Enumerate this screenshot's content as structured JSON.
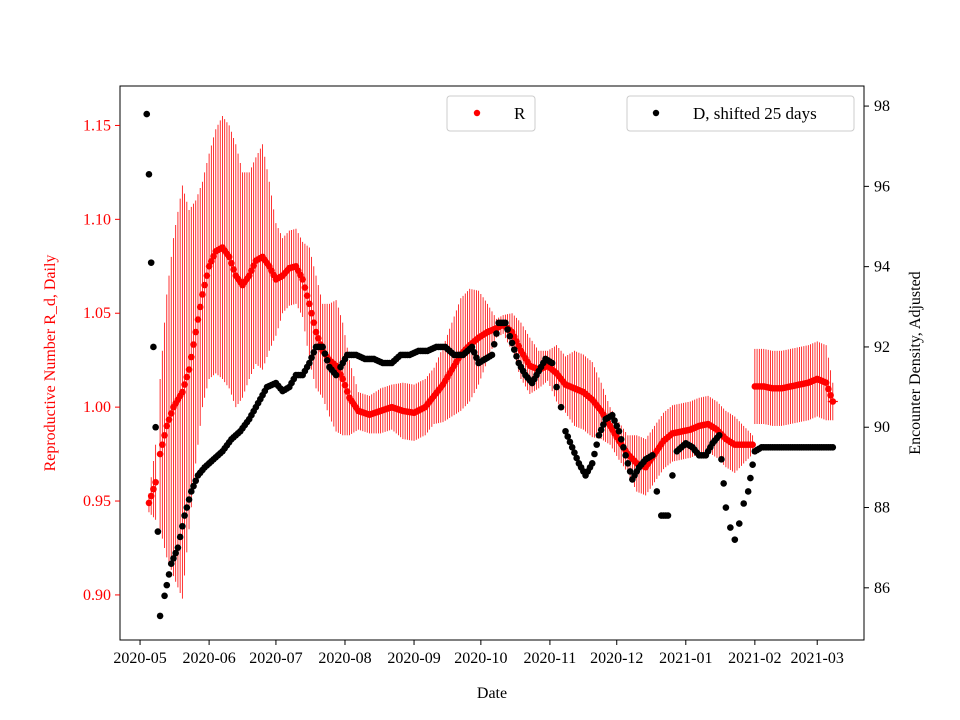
{
  "chart_data": {
    "type": "scatter",
    "xlabel": "Date",
    "ylabel_left": "Reproductive Number R_d, Daily",
    "ylabel_right": "Encounter Density, Adjusted",
    "x_ticks": [
      "2020-05",
      "2020-06",
      "2020-07",
      "2020-08",
      "2020-09",
      "2020-10",
      "2020-11",
      "2020-12",
      "2021-01",
      "2021-02",
      "2021-03"
    ],
    "x_range": [
      "2020-04-22",
      "2021-03-22"
    ],
    "ylim_left": [
      0.876,
      1.171
    ],
    "ylim_right": [
      84.7,
      98.5
    ],
    "yticks_left": [
      "0.90",
      "0.95",
      "1.00",
      "1.05",
      "1.10",
      "1.15"
    ],
    "yticks_right": [
      "86",
      "88",
      "90",
      "92",
      "94",
      "96",
      "98"
    ],
    "colors": {
      "R": "#ff0000",
      "D": "#000000",
      "left_axis": "#ff0000",
      "right_axis": "#000000"
    },
    "legend": [
      {
        "series": "R",
        "label": "R",
        "placement": "top-center"
      },
      {
        "series": "D",
        "label": "D, shifted 25 days",
        "placement": "top-right"
      }
    ],
    "series": [
      {
        "name": "R",
        "axis": "left",
        "color": "#ff0000",
        "marker": "dot-with-errorbar",
        "points": [
          [
            "2020-05-05",
            0.949,
            0.005
          ],
          [
            "2020-05-08",
            0.96,
            0.02
          ],
          [
            "2020-05-10",
            0.975,
            0.04
          ],
          [
            "2020-05-13",
            0.99,
            0.07
          ],
          [
            "2020-05-16",
            1.0,
            0.09
          ],
          [
            "2020-05-20",
            1.008,
            0.11
          ],
          [
            "2020-05-23",
            1.02,
            0.085
          ],
          [
            "2020-05-26",
            1.04,
            0.07
          ],
          [
            "2020-05-29",
            1.06,
            0.06
          ],
          [
            "2020-06-01",
            1.075,
            0.06
          ],
          [
            "2020-06-04",
            1.083,
            0.065
          ],
          [
            "2020-06-07",
            1.085,
            0.07
          ],
          [
            "2020-06-10",
            1.08,
            0.07
          ],
          [
            "2020-06-13",
            1.07,
            0.07
          ],
          [
            "2020-06-16",
            1.065,
            0.06
          ],
          [
            "2020-06-19",
            1.07,
            0.055
          ],
          [
            "2020-06-22",
            1.078,
            0.055
          ],
          [
            "2020-06-25",
            1.08,
            0.06
          ],
          [
            "2020-06-28",
            1.075,
            0.045
          ],
          [
            "2020-07-01",
            1.068,
            0.03
          ],
          [
            "2020-07-04",
            1.07,
            0.02
          ],
          [
            "2020-07-07",
            1.074,
            0.02
          ],
          [
            "2020-07-10",
            1.075,
            0.02
          ],
          [
            "2020-07-13",
            1.068,
            0.02
          ],
          [
            "2020-07-16",
            1.055,
            0.03
          ],
          [
            "2020-07-19",
            1.04,
            0.03
          ],
          [
            "2020-07-22",
            1.03,
            0.025
          ],
          [
            "2020-07-25",
            1.025,
            0.03
          ],
          [
            "2020-07-28",
            1.022,
            0.035
          ],
          [
            "2020-07-31",
            1.015,
            0.03
          ],
          [
            "2020-08-03",
            1.005,
            0.02
          ],
          [
            "2020-08-07",
            0.998,
            0.01
          ],
          [
            "2020-08-12",
            0.996,
            0.01
          ],
          [
            "2020-08-17",
            0.998,
            0.012
          ],
          [
            "2020-08-22",
            1.0,
            0.012
          ],
          [
            "2020-08-27",
            0.998,
            0.015
          ],
          [
            "2020-09-01",
            0.997,
            0.015
          ],
          [
            "2020-09-06",
            1.0,
            0.015
          ],
          [
            "2020-09-10",
            1.006,
            0.015
          ],
          [
            "2020-09-14",
            1.012,
            0.02
          ],
          [
            "2020-09-18",
            1.02,
            0.025
          ],
          [
            "2020-09-22",
            1.028,
            0.03
          ],
          [
            "2020-09-26",
            1.033,
            0.03
          ],
          [
            "2020-09-30",
            1.037,
            0.025
          ],
          [
            "2020-10-04",
            1.04,
            0.015
          ],
          [
            "2020-10-08",
            1.042,
            0.005
          ],
          [
            "2020-10-11",
            1.044,
            0.005
          ],
          [
            "2020-10-15",
            1.04,
            0.01
          ],
          [
            "2020-10-19",
            1.03,
            0.015
          ],
          [
            "2020-10-23",
            1.022,
            0.015
          ],
          [
            "2020-10-27",
            1.02,
            0.01
          ],
          [
            "2020-10-31",
            1.022,
            0.008
          ],
          [
            "2020-11-04",
            1.018,
            0.015
          ],
          [
            "2020-11-08",
            1.012,
            0.015
          ],
          [
            "2020-11-12",
            1.01,
            0.02
          ],
          [
            "2020-11-16",
            1.008,
            0.02
          ],
          [
            "2020-11-20",
            1.004,
            0.02
          ],
          [
            "2020-11-24",
            0.998,
            0.015
          ],
          [
            "2020-11-28",
            0.99,
            0.01
          ],
          [
            "2020-12-02",
            0.982,
            0.01
          ],
          [
            "2020-12-06",
            0.975,
            0.01
          ],
          [
            "2020-12-10",
            0.97,
            0.015
          ],
          [
            "2020-12-14",
            0.968,
            0.015
          ],
          [
            "2020-12-18",
            0.975,
            0.015
          ],
          [
            "2020-12-22",
            0.982,
            0.015
          ],
          [
            "2020-12-26",
            0.986,
            0.015
          ],
          [
            "2020-12-30",
            0.987,
            0.015
          ],
          [
            "2021-01-03",
            0.988,
            0.015
          ],
          [
            "2021-01-07",
            0.99,
            0.015
          ],
          [
            "2021-01-11",
            0.991,
            0.015
          ],
          [
            "2021-01-15",
            0.988,
            0.015
          ],
          [
            "2021-01-19",
            0.983,
            0.015
          ],
          [
            "2021-01-23",
            0.98,
            0.015
          ],
          [
            "2021-01-27",
            0.98,
            0.01
          ],
          [
            "2021-01-31",
            0.98,
            0.005
          ],
          [
            "2021-02-01",
            1.011,
            0.02
          ],
          [
            "2021-02-05",
            1.011,
            0.02
          ],
          [
            "2021-02-09",
            1.01,
            0.02
          ],
          [
            "2021-02-13",
            1.01,
            0.02
          ],
          [
            "2021-02-17",
            1.011,
            0.02
          ],
          [
            "2021-02-21",
            1.012,
            0.02
          ],
          [
            "2021-02-25",
            1.013,
            0.02
          ],
          [
            "2021-03-01",
            1.015,
            0.02
          ],
          [
            "2021-03-05",
            1.013,
            0.02
          ],
          [
            "2021-03-08",
            1.003,
            0.01
          ]
        ]
      },
      {
        "name": "D, shifted 25 days",
        "axis": "right",
        "color": "#000000",
        "marker": "dot",
        "points": [
          [
            "2020-05-04",
            97.8
          ],
          [
            "2020-05-05",
            96.3
          ],
          [
            "2020-05-06",
            94.1
          ],
          [
            "2020-05-07",
            92.0
          ],
          [
            "2020-05-08",
            90.0
          ],
          [
            "2020-05-09",
            87.4
          ],
          [
            "2020-05-10",
            85.3
          ],
          [
            "2020-05-12",
            85.8
          ],
          [
            "2020-05-15",
            86.6
          ],
          [
            "2020-05-18",
            87.0
          ],
          [
            "2020-05-21",
            87.8
          ],
          [
            "2020-05-24",
            88.4
          ],
          [
            "2020-05-27",
            88.8
          ],
          [
            "2020-05-30",
            89.0
          ],
          [
            "2020-06-03",
            89.2
          ],
          [
            "2020-06-07",
            89.4
          ],
          [
            "2020-06-11",
            89.7
          ],
          [
            "2020-06-15",
            89.9
          ],
          [
            "2020-06-19",
            90.2
          ],
          [
            "2020-06-23",
            90.6
          ],
          [
            "2020-06-27",
            91.0
          ],
          [
            "2020-07-01",
            91.1
          ],
          [
            "2020-07-04",
            90.9
          ],
          [
            "2020-07-07",
            91.0
          ],
          [
            "2020-07-10",
            91.3
          ],
          [
            "2020-07-13",
            91.3
          ],
          [
            "2020-07-16",
            91.6
          ],
          [
            "2020-07-19",
            92.0
          ],
          [
            "2020-07-22",
            92.0
          ],
          [
            "2020-07-25",
            91.5
          ],
          [
            "2020-07-28",
            91.3
          ],
          [
            "2020-07-30",
            91.5
          ],
          [
            "2020-08-02",
            91.8
          ],
          [
            "2020-08-06",
            91.8
          ],
          [
            "2020-08-10",
            91.7
          ],
          [
            "2020-08-14",
            91.7
          ],
          [
            "2020-08-18",
            91.6
          ],
          [
            "2020-08-22",
            91.6
          ],
          [
            "2020-08-26",
            91.8
          ],
          [
            "2020-08-30",
            91.8
          ],
          [
            "2020-09-03",
            91.9
          ],
          [
            "2020-09-07",
            91.9
          ],
          [
            "2020-09-11",
            92.0
          ],
          [
            "2020-09-15",
            92.0
          ],
          [
            "2020-09-19",
            91.8
          ],
          [
            "2020-09-23",
            91.8
          ],
          [
            "2020-09-27",
            92.0
          ],
          [
            "2020-09-30",
            91.6
          ],
          [
            "2020-10-03",
            91.7
          ],
          [
            "2020-10-06",
            91.8
          ],
          [
            "2020-10-09",
            92.6
          ],
          [
            "2020-10-12",
            92.6
          ],
          [
            "2020-10-15",
            92.1
          ],
          [
            "2020-10-18",
            91.6
          ],
          [
            "2020-10-21",
            91.3
          ],
          [
            "2020-10-24",
            91.1
          ],
          [
            "2020-10-27",
            91.4
          ],
          [
            "2020-10-30",
            91.7
          ],
          [
            "2020-11-02",
            91.6
          ],
          [
            "2020-11-04",
            91.0
          ],
          [
            "2020-11-06",
            90.5
          ],
          [
            "2020-11-08",
            89.9
          ],
          [
            "2020-11-11",
            89.5
          ],
          [
            "2020-11-14",
            89.1
          ],
          [
            "2020-11-17",
            88.8
          ],
          [
            "2020-11-20",
            89.1
          ],
          [
            "2020-11-23",
            89.8
          ],
          [
            "2020-11-26",
            90.2
          ],
          [
            "2020-11-29",
            90.3
          ],
          [
            "2020-12-02",
            89.9
          ],
          [
            "2020-12-05",
            89.3
          ],
          [
            "2020-12-08",
            88.7
          ],
          [
            "2020-12-11",
            89.0
          ],
          [
            "2020-12-14",
            89.2
          ],
          [
            "2020-12-17",
            89.3
          ],
          [
            "2020-12-19",
            88.4
          ],
          [
            "2020-12-21",
            87.8
          ],
          [
            "2020-12-24",
            87.8
          ],
          [
            "2020-12-26",
            88.8
          ],
          [
            "2020-12-28",
            89.4
          ],
          [
            "2021-01-01",
            89.6
          ],
          [
            "2021-01-04",
            89.5
          ],
          [
            "2021-01-07",
            89.3
          ],
          [
            "2021-01-10",
            89.3
          ],
          [
            "2021-01-13",
            89.6
          ],
          [
            "2021-01-16",
            89.8
          ],
          [
            "2021-01-19",
            88.0
          ],
          [
            "2021-01-21",
            87.5
          ],
          [
            "2021-01-23",
            87.2
          ],
          [
            "2021-01-25",
            87.6
          ],
          [
            "2021-01-27",
            88.1
          ],
          [
            "2021-01-29",
            88.4
          ],
          [
            "2021-02-01",
            89.4
          ],
          [
            "2021-02-04",
            89.5
          ],
          [
            "2021-02-09",
            89.5
          ],
          [
            "2021-02-14",
            89.5
          ],
          [
            "2021-02-19",
            89.5
          ],
          [
            "2021-02-24",
            89.5
          ],
          [
            "2021-03-01",
            89.5
          ],
          [
            "2021-03-05",
            89.5
          ],
          [
            "2021-03-08",
            89.5
          ]
        ]
      }
    ]
  }
}
